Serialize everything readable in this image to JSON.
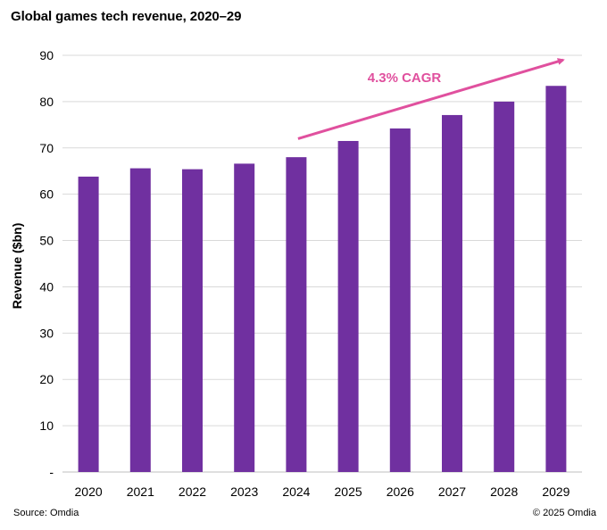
{
  "chart_data": {
    "type": "bar",
    "title": "Global games tech revenue, 2020–29",
    "xlabel": "",
    "ylabel": "Revenue ($bn)",
    "categories": [
      "2020",
      "2021",
      "2022",
      "2023",
      "2024",
      "2025",
      "2026",
      "2027",
      "2028",
      "2029"
    ],
    "values": [
      63.8,
      65.6,
      65.4,
      66.6,
      68.0,
      71.5,
      74.2,
      77.1,
      80.0,
      83.4
    ],
    "ylim": [
      0,
      90
    ],
    "yticks": [
      0,
      10,
      20,
      30,
      40,
      50,
      60,
      70,
      80,
      90
    ],
    "yticklabels": [
      "-",
      "10",
      "20",
      "30",
      "40",
      "50",
      "60",
      "70",
      "80",
      "90"
    ],
    "grid": true,
    "bar_color": "#7030A0",
    "annotation": {
      "text": "4.3% CAGR",
      "color": "#E0509E",
      "arrow_from": {
        "x": "2024",
        "y": 72
      },
      "arrow_to": {
        "x": "2029",
        "y": 89
      }
    }
  },
  "footer": {
    "source": "Source: Omdia",
    "copyright": "© 2025 Omdia"
  }
}
